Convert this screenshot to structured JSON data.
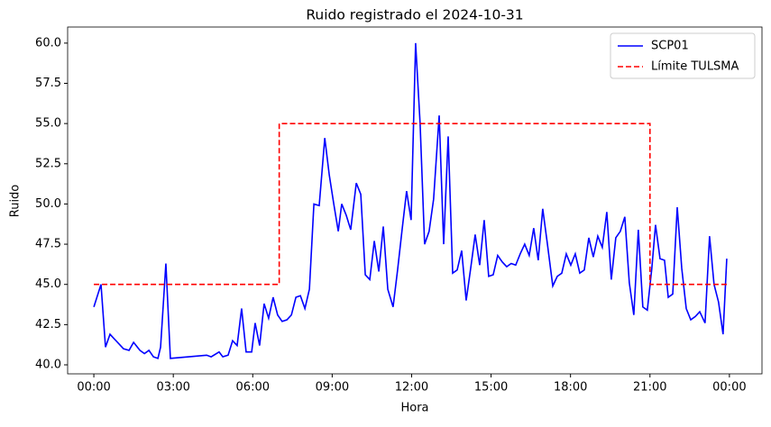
{
  "chart_data": {
    "type": "line",
    "title": "Ruido registrado el 2024-10-31",
    "x_label": "Hora",
    "y_label": "Ruido",
    "xlim": [
      -0.99,
      25.23
    ],
    "ylim": [
      39.44,
      61.0
    ],
    "xticks": [
      {
        "value": 0,
        "label": "00:00"
      },
      {
        "value": 3,
        "label": "03:00"
      },
      {
        "value": 6,
        "label": "06:00"
      },
      {
        "value": 9,
        "label": "09:00"
      },
      {
        "value": 12,
        "label": "12:00"
      },
      {
        "value": 15,
        "label": "15:00"
      },
      {
        "value": 18,
        "label": "18:00"
      },
      {
        "value": 21,
        "label": "21:00"
      },
      {
        "value": 24,
        "label": "00:00"
      }
    ],
    "yticks": [
      {
        "value": 40,
        "label": "40.0"
      },
      42.5,
      {
        "value": 45,
        "label": "45.0"
      },
      47.5,
      {
        "value": 50,
        "label": "50.0"
      },
      52.5,
      {
        "value": 55,
        "label": "55.0"
      },
      57.5,
      {
        "value": 60,
        "label": "60.0"
      }
    ],
    "legend": "upper right",
    "series": [
      {
        "name": "SCP01",
        "color": "#0000ff",
        "dash": "solid",
        "x": [
          0.0,
          0.27,
          0.44,
          0.61,
          1.12,
          1.33,
          1.5,
          1.74,
          1.91,
          2.08,
          2.25,
          2.42,
          2.52,
          2.72,
          2.89,
          4.26,
          4.43,
          4.73,
          4.87,
          5.07,
          5.24,
          5.41,
          5.58,
          5.75,
          5.96,
          6.09,
          6.26,
          6.43,
          6.6,
          6.77,
          6.94,
          7.11,
          7.29,
          7.46,
          7.63,
          7.8,
          7.97,
          8.14,
          8.31,
          8.51,
          8.72,
          8.89,
          9.06,
          9.23,
          9.36,
          9.53,
          9.7,
          9.91,
          10.08,
          10.25,
          10.42,
          10.59,
          10.76,
          10.93,
          11.1,
          11.3,
          11.47,
          11.64,
          11.81,
          11.98,
          12.15,
          12.32,
          12.49,
          12.66,
          12.83,
          13.04,
          13.21,
          13.38,
          13.55,
          13.72,
          13.89,
          14.06,
          14.23,
          14.4,
          14.57,
          14.74,
          14.91,
          15.08,
          15.25,
          15.42,
          15.59,
          15.76,
          15.93,
          16.1,
          16.27,
          16.44,
          16.61,
          16.78,
          16.95,
          17.12,
          17.33,
          17.5,
          17.67,
          17.84,
          18.01,
          18.18,
          18.35,
          18.52,
          18.69,
          18.86,
          19.03,
          19.2,
          19.37,
          19.54,
          19.71,
          19.88,
          20.05,
          20.22,
          20.39,
          20.56,
          20.73,
          20.9,
          21.07,
          21.21,
          21.38,
          21.55,
          21.69,
          21.86,
          22.03,
          22.2,
          22.37,
          22.54,
          22.71,
          22.88,
          23.08,
          23.25,
          23.42,
          23.59,
          23.76,
          23.9
        ],
        "values": [
          43.6,
          45.0,
          41.1,
          41.9,
          41.0,
          40.9,
          41.4,
          40.9,
          40.7,
          40.9,
          40.5,
          40.4,
          41.1,
          46.3,
          40.4,
          40.6,
          40.5,
          40.8,
          40.5,
          40.6,
          41.5,
          41.2,
          43.5,
          40.8,
          40.8,
          42.6,
          41.2,
          43.8,
          42.9,
          44.2,
          43.1,
          42.7,
          42.8,
          43.1,
          44.2,
          44.3,
          43.5,
          44.7,
          50.0,
          49.9,
          54.1,
          51.8,
          50.0,
          48.3,
          50.0,
          49.3,
          48.4,
          51.3,
          50.6,
          45.6,
          45.3,
          47.7,
          45.8,
          48.6,
          44.7,
          43.6,
          45.9,
          48.4,
          50.8,
          49.0,
          60.0,
          55.0,
          47.5,
          48.3,
          50.3,
          55.5,
          47.5,
          54.2,
          45.7,
          45.9,
          47.1,
          44.0,
          46.0,
          48.1,
          46.2,
          49.0,
          45.5,
          45.6,
          46.8,
          46.4,
          46.1,
          46.3,
          46.2,
          46.9,
          47.5,
          46.8,
          48.5,
          46.5,
          49.7,
          47.6,
          44.9,
          45.5,
          45.7,
          46.9,
          46.2,
          46.9,
          45.7,
          45.9,
          47.9,
          46.7,
          48.0,
          47.3,
          49.5,
          45.3,
          47.9,
          48.3,
          49.2,
          45.1,
          43.1,
          48.4,
          43.6,
          43.4,
          46.0,
          48.7,
          46.6,
          46.5,
          44.2,
          44.4,
          49.8,
          46.0,
          43.5,
          42.8,
          43.0,
          43.3,
          42.6,
          48.0,
          45.0,
          43.9,
          41.9,
          46.6
        ]
      },
      {
        "name": "Límite TULSMA",
        "color": "#ff0000",
        "dash": "dashed",
        "x": [
          0,
          7,
          7,
          21,
          21,
          24
        ],
        "values": [
          45,
          45,
          55,
          55,
          45,
          45
        ]
      }
    ]
  }
}
